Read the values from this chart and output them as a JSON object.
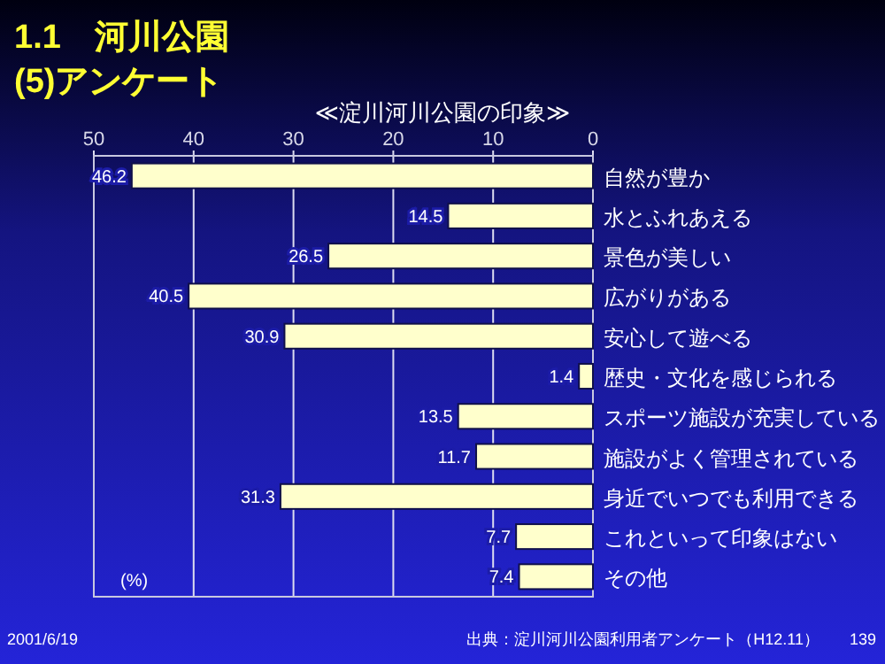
{
  "chart_data": {
    "type": "bar",
    "orientation": "horizontal",
    "title": "1.1　河川公園",
    "subtitle": "(5)アンケート",
    "xlabel": "(%)",
    "annotations": [
      "≪淀川河川公園の印象≫",
      "2001/6/19",
      "出典：淀川河川公園利用者アンケート（H12.11）",
      "139"
    ],
    "categories": [
      "自然が豊か",
      "水とふれあえる",
      "景色が美しい",
      "広がりがある",
      "安心して遊べる",
      "歴史・文化を感じられる",
      "スポーツ施設が充実している",
      "施設がよく管理されている",
      "身近でいつでも利用できる",
      "これといって印象はない",
      "その他"
    ],
    "values": [
      46.2,
      14.5,
      26.5,
      40.5,
      30.9,
      1.4,
      13.5,
      11.7,
      31.3,
      7.7,
      7.4
    ],
    "color": "#ffffcc",
    "xlim": [
      50,
      0
    ],
    "xticks": [
      50,
      40,
      30,
      20,
      10,
      0
    ],
    "grid": "x",
    "data_labels": true
  }
}
